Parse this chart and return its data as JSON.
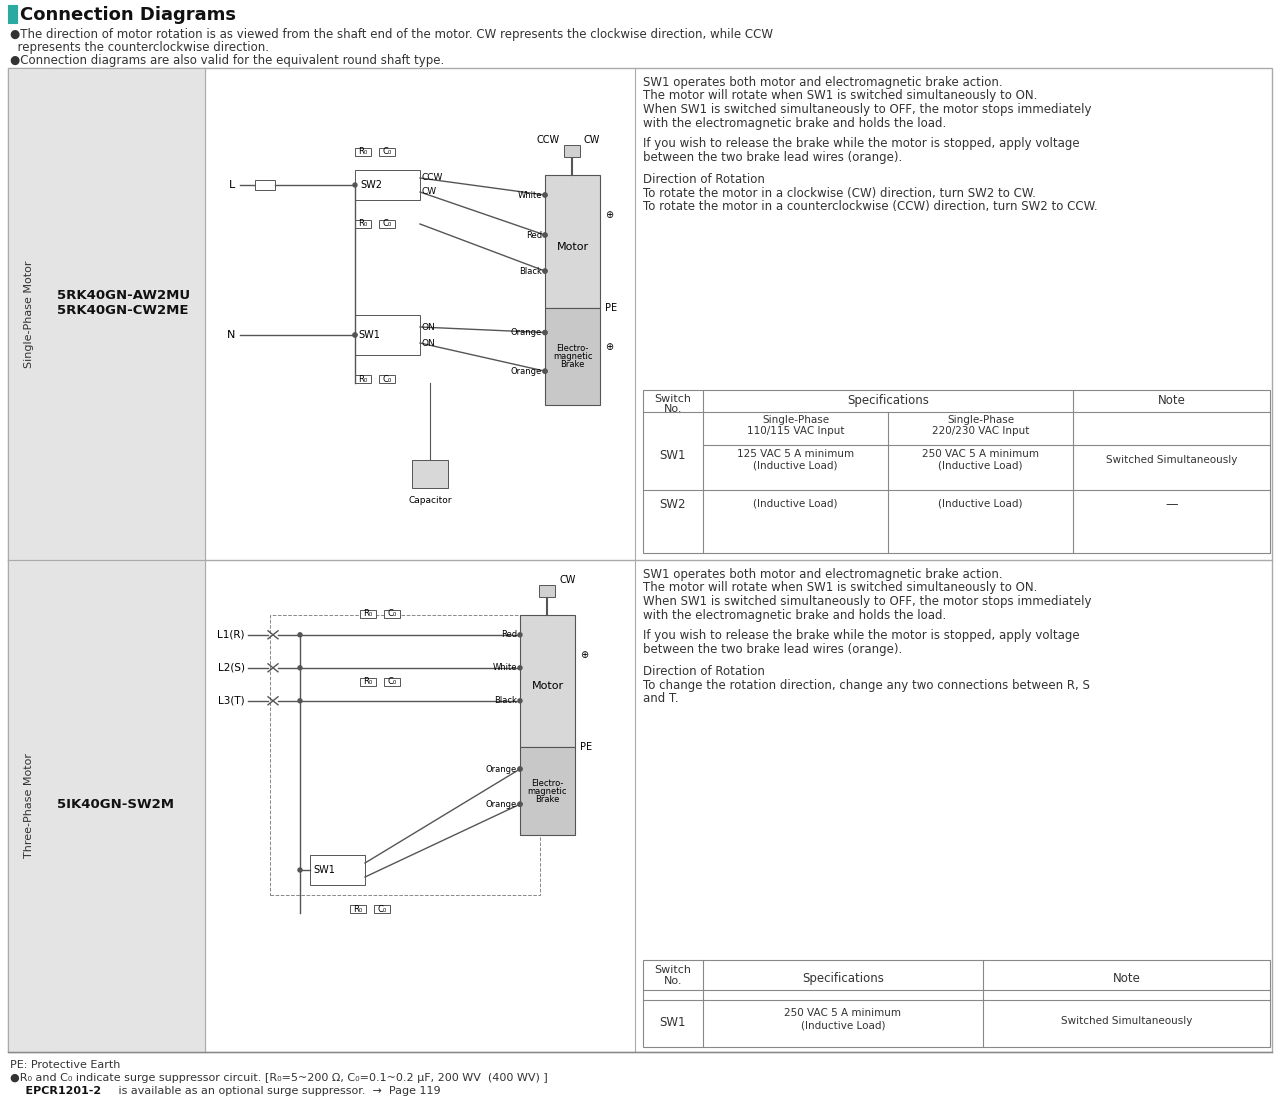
{
  "title": "Connection Diagrams",
  "teal_bar_color": "#2aaaa0",
  "bg_color": "#ffffff",
  "header_line1": "●The direction of motor rotation is as viewed from the shaft end of the motor. CW represents the clockwise direction, while CCW",
  "header_line2": "  represents the counterclockwise direction.",
  "header_line3": "●Connection diagrams are also valid for the equivalent round shaft type.",
  "row1_label": "Single-Phase Motor",
  "row1_model_line1": "5RK40GN-AW2MU",
  "row1_model_line2": "5RK40GN-CW2ME",
  "row2_label": "Three-Phase Motor",
  "row2_model": "5IK40GN-SW2M",
  "desc1_l1": "SW1 operates both motor and electromagnetic brake action.",
  "desc1_l2": "The motor will rotate when SW1 is switched simultaneously to ON.",
  "desc1_l3": "When SW1 is switched simultaneously to OFF, the motor stops immediately",
  "desc1_l4": "with the electromagnetic brake and holds the load.",
  "desc1_l5": "If you wish to release the brake while the motor is stopped, apply voltage",
  "desc1_l6": "between the two brake lead wires (orange).",
  "desc1_l7": "Direction of Rotation",
  "desc1_l8": "To rotate the motor in a clockwise (CW) direction, turn SW2 to CW.",
  "desc1_l9": "To rotate the motor in a counterclockwise (CCW) direction, turn SW2 to CCW.",
  "desc2_l1": "SW1 operates both motor and electromagnetic brake action.",
  "desc2_l2": "The motor will rotate when SW1 is switched simultaneously to ON.",
  "desc2_l3": "When SW1 is switched simultaneously to OFF, the motor stops immediately",
  "desc2_l4": "with the electromagnetic brake and holds the load.",
  "desc2_l5": "If you wish to release the brake while the motor is stopped, apply voltage",
  "desc2_l6": "between the two brake lead wires (orange).",
  "desc2_l7": "Direction of Rotation",
  "desc2_l8": "To change the rotation direction, change any two connections between R, S",
  "desc2_l9": "and T.",
  "t1_spec_hdr": "Specifications",
  "t1_sw_no": "Switch\nNo.",
  "t1_col1": "Single-Phase\n110/115 VAC Input",
  "t1_col2": "Single-Phase\n220/230 VAC Input",
  "t1_note": "Note",
  "t1_sw1": "SW1",
  "t1_sw1_v1": "125 VAC 5 A minimum",
  "t1_sw1_v1b": "(Inductive Load)",
  "t1_sw1_v2": "250 VAC 5 A minimum",
  "t1_sw1_v2b": "(Inductive Load)",
  "t1_sw1_note": "Switched Simultaneously",
  "t1_sw2": "SW2",
  "t1_sw2_v1": "(Inductive Load)",
  "t1_sw2_v2": "(Inductive Load)",
  "t1_sw2_note": "—",
  "t2_sw_no": "Switch\nNo.",
  "t2_spec": "Specifications",
  "t2_note": "Note",
  "t2_sw1": "SW1",
  "t2_sw1_v": "250 VAC 5 A minimum\n(Inductive Load)",
  "t2_sw1_note": "Switched Simultaneously",
  "footer1": "PE: Protective Earth",
  "footer2": "●R₀ and C₀ indicate surge suppressor circuit. [R₀=5~200 Ω, C₀=0.1~0.2 μF, 200 WV  (400 WV) ]",
  "footer3a": "    EPCR1201-2",
  "footer3b": " is available as an optional surge suppressor.  →  Page 119",
  "gray_bg": "#e4e4e4",
  "line_color": "#999999",
  "circuit_color": "#555555",
  "motor_color": "#d0d0d0",
  "brake_color": "#c0c0c0"
}
